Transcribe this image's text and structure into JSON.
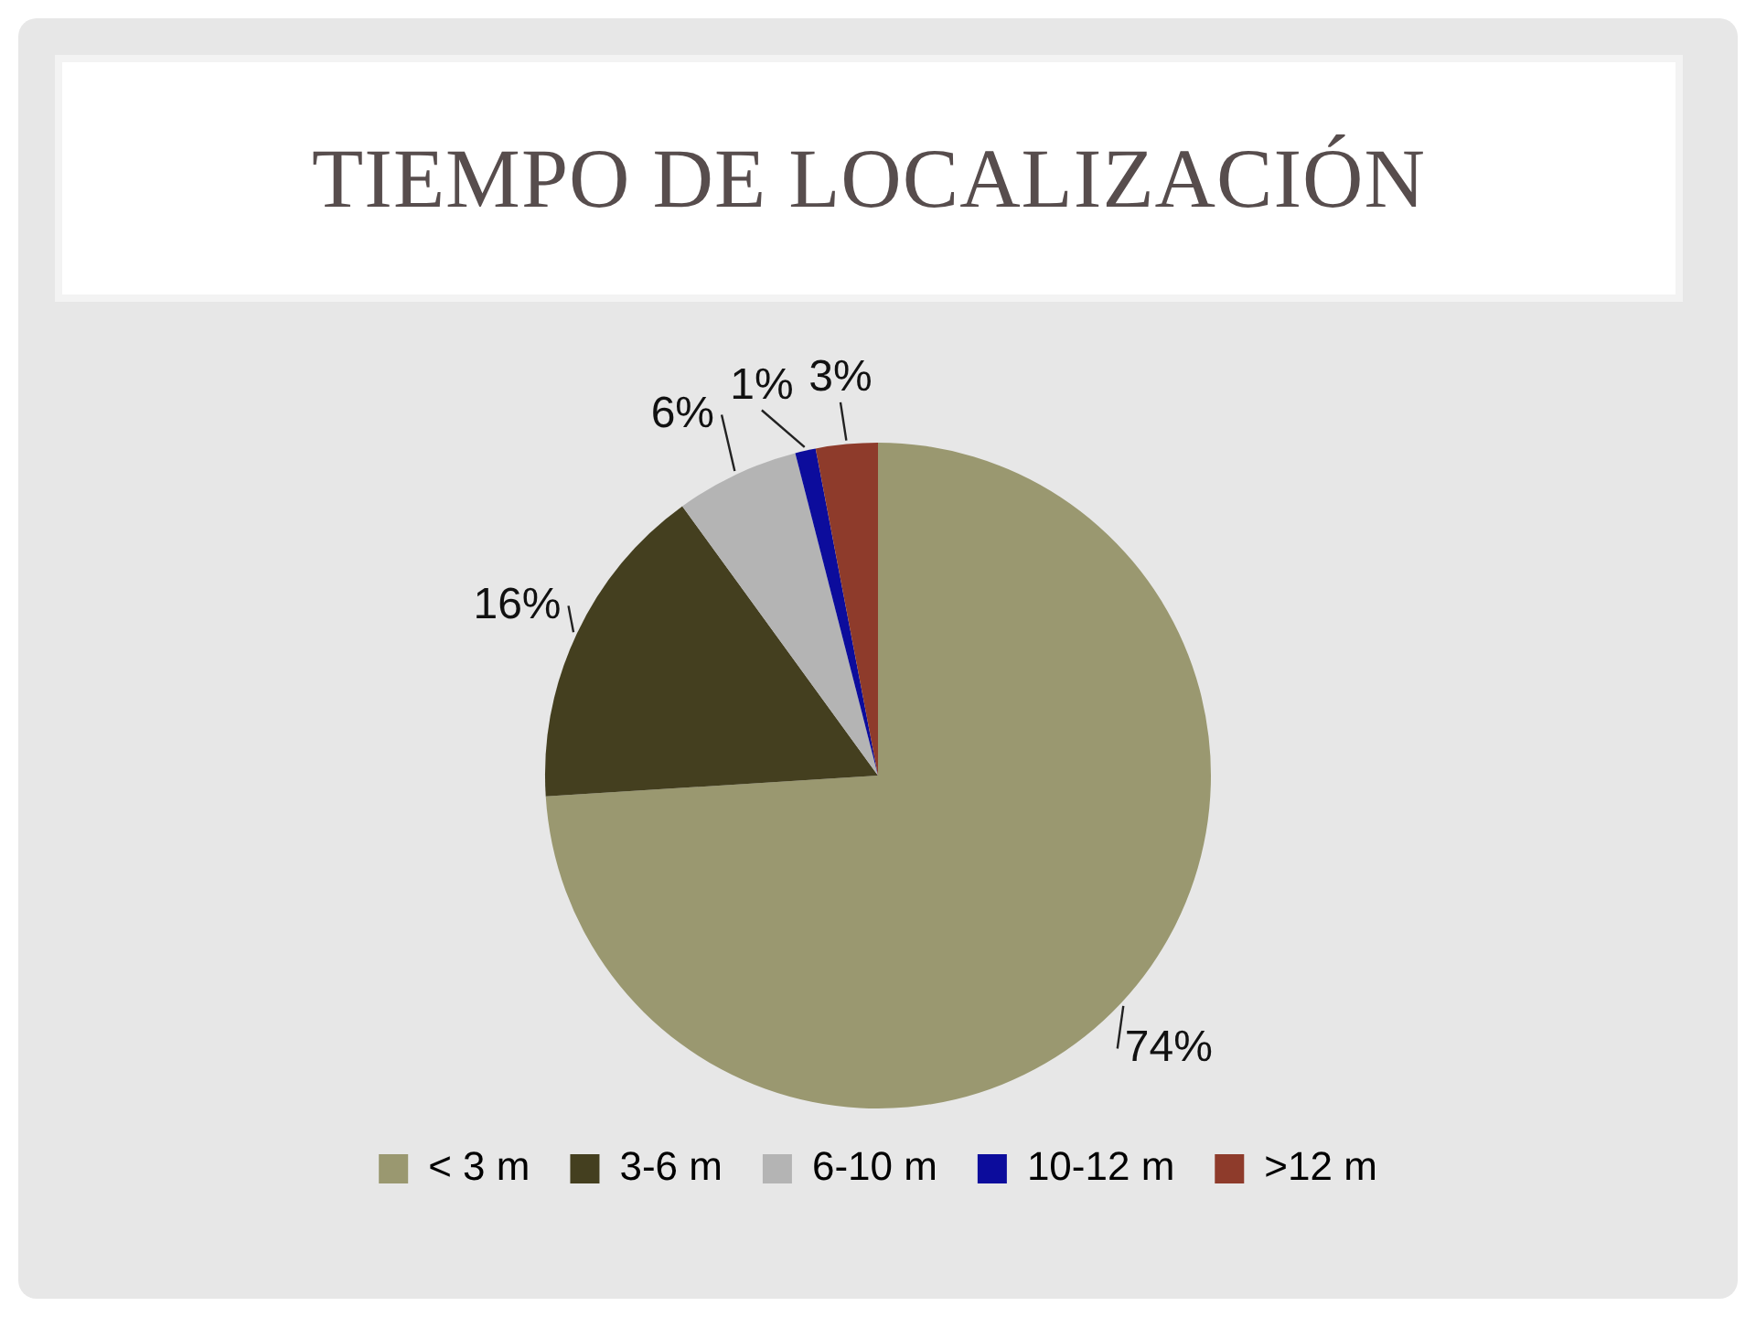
{
  "chart_data": {
    "type": "pie",
    "title": "TIEMPO DE LOCALIZACIÓN",
    "categories": [
      "< 3 m",
      "3-6 m",
      "6-10 m",
      "10-12 m",
      ">12 m"
    ],
    "values": [
      74,
      16,
      6,
      1,
      3
    ],
    "colors": [
      "#9a9870",
      "#443f1f",
      "#b4b4b4",
      "#0c0c9c",
      "#8e3b2b"
    ],
    "value_labels": [
      "74%",
      "16%",
      "6%",
      "1%",
      "3%"
    ],
    "legend": "bottom"
  }
}
